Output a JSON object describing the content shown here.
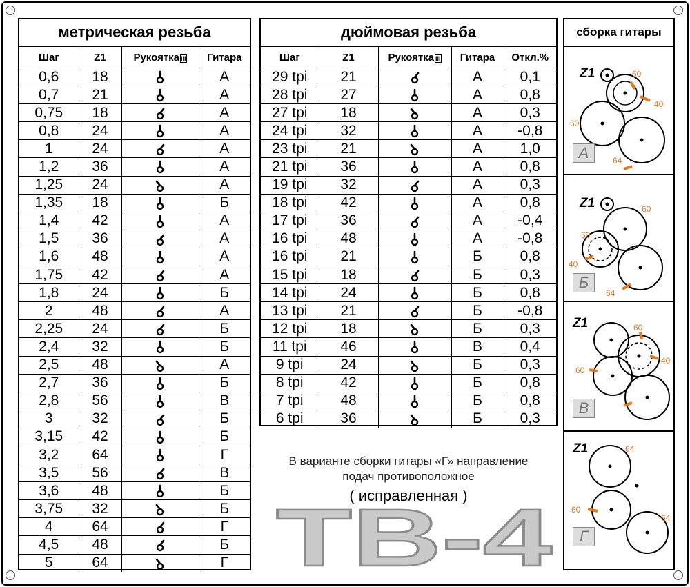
{
  "metric": {
    "title": "метрическая резьба",
    "headers": [
      "Шаг",
      "Z1",
      "Рукоятка",
      "Гитара"
    ],
    "roman": "III",
    "rows": [
      {
        "step": "0,6",
        "z1": "18",
        "handle": "up",
        "guitar": "А"
      },
      {
        "step": "0,7",
        "z1": "21",
        "handle": "up",
        "guitar": "А"
      },
      {
        "step": "0,75",
        "z1": "18",
        "handle": "right",
        "guitar": "А"
      },
      {
        "step": "0,8",
        "z1": "24",
        "handle": "up",
        "guitar": "А"
      },
      {
        "step": "1",
        "z1": "24",
        "handle": "right",
        "guitar": "А"
      },
      {
        "step": "1,2",
        "z1": "36",
        "handle": "up",
        "guitar": "А"
      },
      {
        "step": "1,25",
        "z1": "24",
        "handle": "left",
        "guitar": "А"
      },
      {
        "step": "1,35",
        "z1": "18",
        "handle": "up",
        "guitar": "Б"
      },
      {
        "step": "1,4",
        "z1": "42",
        "handle": "up",
        "guitar": "А"
      },
      {
        "step": "1,5",
        "z1": "36",
        "handle": "right",
        "guitar": "А"
      },
      {
        "step": "1,6",
        "z1": "48",
        "handle": "up",
        "guitar": "А"
      },
      {
        "step": "1,75",
        "z1": "42",
        "handle": "right",
        "guitar": "А"
      },
      {
        "step": "1,8",
        "z1": "24",
        "handle": "up",
        "guitar": "Б"
      },
      {
        "step": "2",
        "z1": "48",
        "handle": "right",
        "guitar": "А"
      },
      {
        "step": "2,25",
        "z1": "24",
        "handle": "right",
        "guitar": "Б"
      },
      {
        "step": "2,4",
        "z1": "32",
        "handle": "up",
        "guitar": "Б"
      },
      {
        "step": "2,5",
        "z1": "48",
        "handle": "left",
        "guitar": "А"
      },
      {
        "step": "2,7",
        "z1": "36",
        "handle": "up",
        "guitar": "Б"
      },
      {
        "step": "2,8",
        "z1": "56",
        "handle": "up",
        "guitar": "В"
      },
      {
        "step": "3",
        "z1": "32",
        "handle": "right",
        "guitar": "Б"
      },
      {
        "step": "3,15",
        "z1": "42",
        "handle": "up",
        "guitar": "Б"
      },
      {
        "step": "3,2",
        "z1": "64",
        "handle": "up",
        "guitar": "Г"
      },
      {
        "step": "3,5",
        "z1": "56",
        "handle": "right",
        "guitar": "В"
      },
      {
        "step": "3,6",
        "z1": "48",
        "handle": "up",
        "guitar": "Б"
      },
      {
        "step": "3,75",
        "z1": "32",
        "handle": "left",
        "guitar": "Б"
      },
      {
        "step": "4",
        "z1": "64",
        "handle": "right",
        "guitar": "Г"
      },
      {
        "step": "4,5",
        "z1": "48",
        "handle": "right",
        "guitar": "Б"
      },
      {
        "step": "5",
        "z1": "64",
        "handle": "left",
        "guitar": "Г"
      }
    ]
  },
  "inch": {
    "title": "дюймовая резьба",
    "headers": [
      "Шаг",
      "Z1",
      "Рукоятка",
      "Гитара",
      "Откл.%"
    ],
    "roman": "III",
    "rows": [
      {
        "step": "29 tpi",
        "z1": "21",
        "handle": "right",
        "guitar": "А",
        "dev": "0,1"
      },
      {
        "step": "28 tpi",
        "z1": "27",
        "handle": "up",
        "guitar": "А",
        "dev": "0,8"
      },
      {
        "step": "27 tpi",
        "z1": "18",
        "handle": "left",
        "guitar": "А",
        "dev": "0,3"
      },
      {
        "step": "24 tpi",
        "z1": "32",
        "handle": "up",
        "guitar": "А",
        "dev": "-0,8"
      },
      {
        "step": "23 tpi",
        "z1": "21",
        "handle": "left",
        "guitar": "А",
        "dev": "1,0"
      },
      {
        "step": "21 tpi",
        "z1": "36",
        "handle": "up",
        "guitar": "А",
        "dev": "0,8"
      },
      {
        "step": "19 tpi",
        "z1": "32",
        "handle": "right",
        "guitar": "А",
        "dev": "0,3"
      },
      {
        "step": "18 tpi",
        "z1": "42",
        "handle": "up",
        "guitar": "А",
        "dev": "0,8"
      },
      {
        "step": "17 tpi",
        "z1": "36",
        "handle": "right",
        "guitar": "А",
        "dev": "-0,4"
      },
      {
        "step": "16 tpi",
        "z1": "48",
        "handle": "up",
        "guitar": "А",
        "dev": "-0,8"
      },
      {
        "step": "16 tpi",
        "z1": "21",
        "handle": "up",
        "guitar": "Б",
        "dev": "0,8"
      },
      {
        "step": "15 tpi",
        "z1": "18",
        "handle": "right",
        "guitar": "Б",
        "dev": "0,3"
      },
      {
        "step": "14 tpi",
        "z1": "24",
        "handle": "up",
        "guitar": "Б",
        "dev": "0,8"
      },
      {
        "step": "13 tpi",
        "z1": "21",
        "handle": "right",
        "guitar": "Б",
        "dev": "-0,8"
      },
      {
        "step": "12 tpi",
        "z1": "18",
        "handle": "left",
        "guitar": "Б",
        "dev": "0,3"
      },
      {
        "step": "11 tpi",
        "z1": "46",
        "handle": "up",
        "guitar": "В",
        "dev": "0,4"
      },
      {
        "step": "9 tpi",
        "z1": "24",
        "handle": "left",
        "guitar": "Б",
        "dev": "0,3"
      },
      {
        "step": "8 tpi",
        "z1": "42",
        "handle": "up",
        "guitar": "Б",
        "dev": "0,8"
      },
      {
        "step": "7 tpi",
        "z1": "48",
        "handle": "up",
        "guitar": "Б",
        "dev": "0,8"
      },
      {
        "step": "6 tpi",
        "z1": "36",
        "handle": "left",
        "guitar": "Б",
        "dev": "0,3"
      }
    ]
  },
  "assembly": {
    "title": "сборка гитары",
    "z1": "Z1",
    "variants": [
      {
        "label": "А",
        "n1": "60",
        "n2": "40",
        "n3": "60",
        "n4": "64"
      },
      {
        "label": "Б",
        "n1": "60",
        "n2": "60",
        "n3": "40",
        "n4": "64"
      },
      {
        "label": "В",
        "n1": "60",
        "n2": "40",
        "n3": "60",
        "n4": ""
      },
      {
        "label": "Г",
        "n1": "64",
        "n2": "60",
        "n3": "64",
        "n4": ""
      }
    ]
  },
  "note": {
    "line1": "В варианте сборки гитары «Г» направление",
    "line2": "подач противоположное",
    "fixed": "( исправленная )"
  },
  "brand": "ТВ-4"
}
